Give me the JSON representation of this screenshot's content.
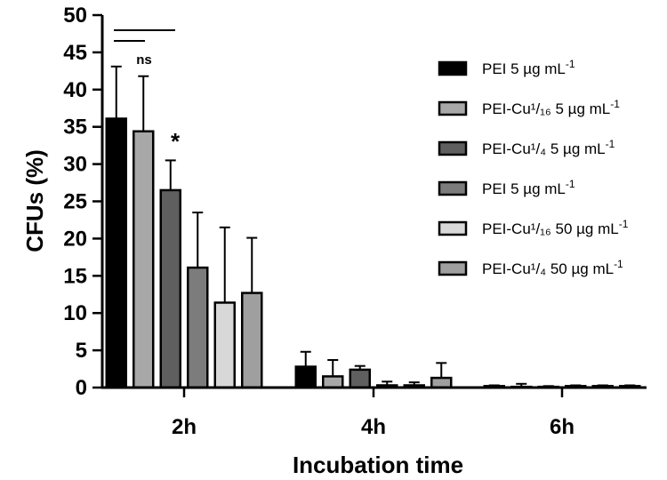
{
  "chart_data": {
    "type": "bar",
    "title": "",
    "xlabel": "Incubation time",
    "ylabel": "CFUs (%)",
    "ylim": [
      0,
      50
    ],
    "yticks": [
      0,
      5,
      10,
      15,
      20,
      25,
      30,
      35,
      40,
      45,
      50
    ],
    "ytick_labels": [
      "0",
      "5",
      "10",
      "15",
      "20",
      "25",
      "30",
      "35",
      "40",
      "45",
      "50"
    ],
    "categories": [
      "2h",
      "4h",
      "6h"
    ],
    "series": [
      {
        "name": "PEI 5 µg mL-1",
        "label_main": "PEI 5 µg mL",
        "label_sup": "-1",
        "color": "#000000",
        "values": [
          36.1,
          2.8,
          0.2
        ],
        "errors": [
          7.0,
          2.0,
          0.1
        ]
      },
      {
        "name": "PEI-Cu1/16 5 µg mL-1",
        "label_main": "PEI-Cu¹/₁₆ 5 µg mL",
        "label_sup": "-1",
        "color": "#a8a8a8",
        "values": [
          34.4,
          1.5,
          0.1
        ],
        "errors": [
          7.4,
          2.2,
          0.4
        ]
      },
      {
        "name": "PEI-Cu1/4 5 µg mL-1",
        "label_main": "PEI-Cu¹/₄  5 µg mL",
        "label_sup": "-1",
        "color": "#5f5f5f",
        "values": [
          26.5,
          2.4,
          0.1
        ],
        "errors": [
          4.0,
          0.5,
          0.1
        ]
      },
      {
        "name": "PEI 5 µg mL-1",
        "label_main": "PEI 5 µg mL",
        "label_sup": "-1",
        "color": "#7c7c7c",
        "values": [
          16.1,
          0.3,
          0.2
        ],
        "errors": [
          7.4,
          0.5,
          0.1
        ]
      },
      {
        "name": "PEI-Cu1/16 50 µg mL-1",
        "label_main": "PEI-Cu¹/₁₆ 50 µg mL",
        "label_sup": "-1",
        "color": "#d8d8d8",
        "values": [
          11.4,
          0.3,
          0.2
        ],
        "errors": [
          10.1,
          0.4,
          0.1
        ]
      },
      {
        "name": "PEI-Cu1/4 50 µg mL-1",
        "label_main": "PEI-Cu¹/₄  50 µg mL",
        "label_sup": "-1",
        "color": "#9f9f9f",
        "values": [
          12.7,
          1.3,
          0.2
        ],
        "errors": [
          7.4,
          2.0,
          0.1
        ]
      }
    ],
    "annotations": {
      "significance": [
        "ns",
        "*"
      ]
    },
    "legend_position": "right"
  }
}
